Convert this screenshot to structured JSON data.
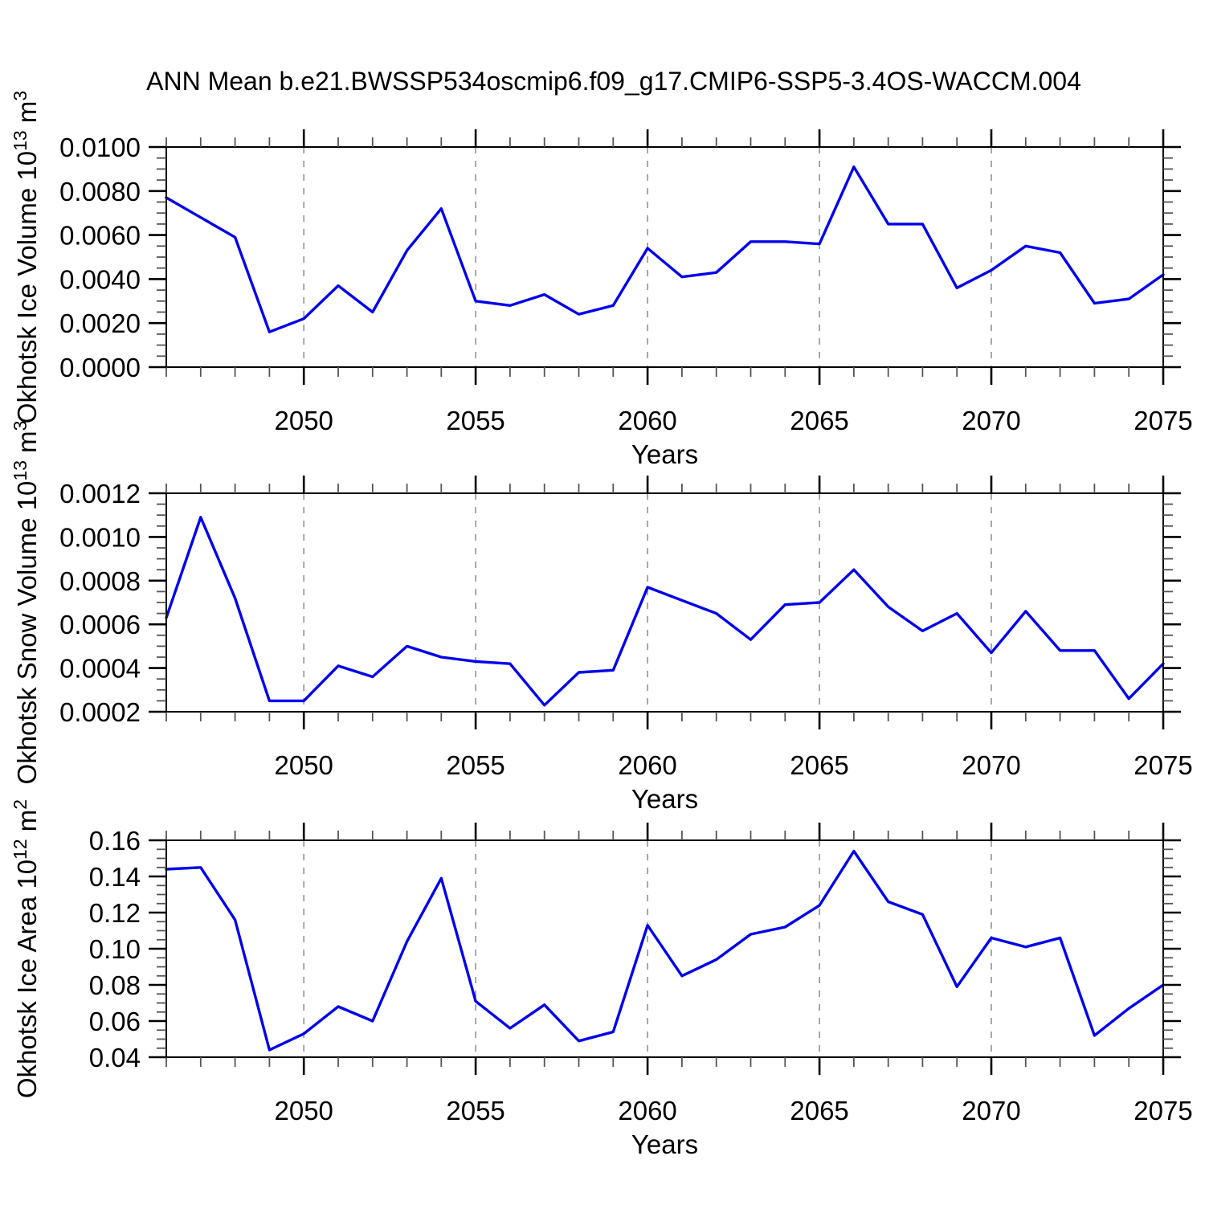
{
  "chart_data": {
    "type": "line",
    "title": "ANN Mean b.e21.BWSSP534oscmip6.f09_g17.CMIP6-SSP5-3.4OS-WACCM.004",
    "xlabel": "Years",
    "xlim": [
      2046,
      2075
    ],
    "xtick_values": [
      2050,
      2055,
      2060,
      2065,
      2070,
      2075
    ],
    "xtick_labels": [
      "2050",
      "2055",
      "2060",
      "2065",
      "2070",
      "2075"
    ],
    "xminor_step_years": 1,
    "line_color": "#0000EE",
    "grid": {
      "vertical_dashed_at": [
        2050,
        2055,
        2060,
        2065,
        2070
      ],
      "color": "#999999",
      "style": "dashed"
    },
    "x": [
      2046,
      2047,
      2048,
      2049,
      2050,
      2051,
      2052,
      2053,
      2054,
      2055,
      2056,
      2057,
      2058,
      2059,
      2060,
      2061,
      2062,
      2063,
      2064,
      2065,
      2066,
      2067,
      2068,
      2069,
      2070,
      2071,
      2072,
      2073,
      2074,
      2075
    ],
    "panels": [
      {
        "name": "ice-volume",
        "ylabel_text": "Okhotsk Ice Volume 10^13 m^3",
        "ylabel_segments": [
          {
            "text": "Okhotsk Ice Volume 10",
            "sup": false
          },
          {
            "text": "13",
            "sup": true
          },
          {
            "text": " m",
            "sup": false
          },
          {
            "text": "3",
            "sup": true
          }
        ],
        "ylim": [
          0.0,
          0.01
        ],
        "ytick_values": [
          0.0,
          0.002,
          0.004,
          0.006,
          0.008,
          0.01
        ],
        "ytick_labels": [
          "0.0000",
          "0.0020",
          "0.0040",
          "0.0060",
          "0.0080",
          "0.0100"
        ],
        "yminor_divisions": 4,
        "values": [
          0.0077,
          0.0068,
          0.0059,
          0.0016,
          0.0022,
          0.0037,
          0.0025,
          0.0053,
          0.0072,
          0.003,
          0.0028,
          0.0033,
          0.0024,
          0.0028,
          0.0054,
          0.0041,
          0.0043,
          0.0057,
          0.0057,
          0.0056,
          0.0091,
          0.0065,
          0.0065,
          0.0036,
          0.0044,
          0.0055,
          0.0052,
          0.0029,
          0.0031,
          0.0042
        ]
      },
      {
        "name": "snow-volume",
        "ylabel_text": "Okhotsk Snow Volume 10^13 m^3",
        "ylabel_segments": [
          {
            "text": "Okhotsk Snow Volume 10",
            "sup": false
          },
          {
            "text": "13",
            "sup": true
          },
          {
            "text": " m",
            "sup": false
          },
          {
            "text": "3",
            "sup": true
          }
        ],
        "ylim": [
          0.0002,
          0.0012
        ],
        "ytick_values": [
          0.0002,
          0.0004,
          0.0006,
          0.0008,
          0.001,
          0.0012
        ],
        "ytick_labels": [
          "0.0002",
          "0.0004",
          "0.0006",
          "0.0008",
          "0.0010",
          "0.0012"
        ],
        "yminor_divisions": 4,
        "values": [
          0.00063,
          0.00109,
          0.00072,
          0.00025,
          0.00025,
          0.00041,
          0.00036,
          0.0005,
          0.00045,
          0.00043,
          0.00042,
          0.00023,
          0.00038,
          0.00039,
          0.00077,
          0.00071,
          0.00065,
          0.00053,
          0.00069,
          0.0007,
          0.00085,
          0.00068,
          0.00057,
          0.00065,
          0.00047,
          0.00066,
          0.00048,
          0.00048,
          0.00026,
          0.00042
        ]
      },
      {
        "name": "ice-area",
        "ylabel_text": "Okhotsk Ice Area 10^12 m^2",
        "ylabel_segments": [
          {
            "text": "Okhotsk Ice Area 10",
            "sup": false
          },
          {
            "text": "12",
            "sup": true
          },
          {
            "text": " m",
            "sup": false
          },
          {
            "text": "2",
            "sup": true
          }
        ],
        "ylim": [
          0.04,
          0.16
        ],
        "ytick_values": [
          0.04,
          0.06,
          0.08,
          0.1,
          0.12,
          0.14,
          0.16
        ],
        "ytick_labels": [
          "0.04",
          "0.06",
          "0.08",
          "0.10",
          "0.12",
          "0.14",
          "0.16"
        ],
        "yminor_divisions": 4,
        "values": [
          0.144,
          0.145,
          0.116,
          0.044,
          0.053,
          0.068,
          0.06,
          0.104,
          0.139,
          0.071,
          0.056,
          0.069,
          0.049,
          0.054,
          0.113,
          0.085,
          0.094,
          0.108,
          0.112,
          0.124,
          0.154,
          0.126,
          0.119,
          0.079,
          0.106,
          0.101,
          0.106,
          0.052,
          0.067,
          0.08
        ]
      }
    ]
  }
}
